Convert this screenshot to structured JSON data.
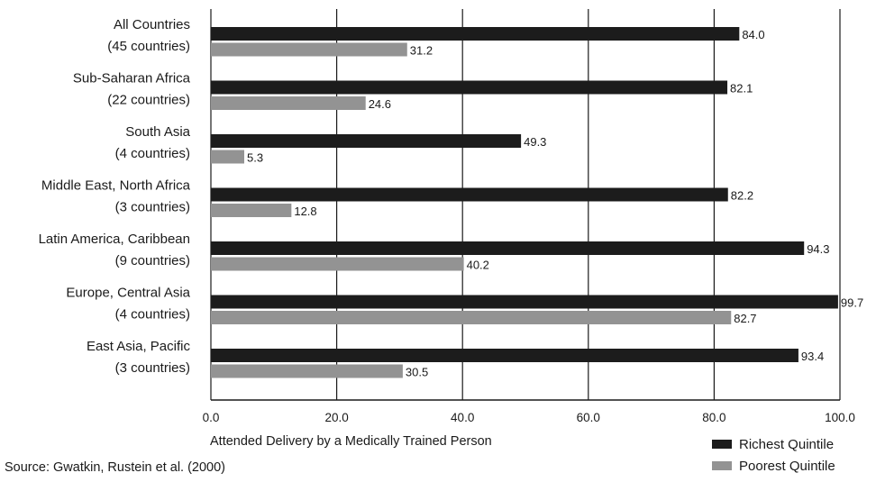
{
  "chart_data": {
    "type": "bar",
    "orientation": "horizontal",
    "categories": [
      [
        "All Countries",
        "(45 countries)"
      ],
      [
        "Sub-Saharan Africa",
        "(22 countries)"
      ],
      [
        "South Asia",
        "(4 countries)"
      ],
      [
        "Middle East, North Africa",
        "(3 countries)"
      ],
      [
        "Latin America, Caribbean",
        "(9 countries)"
      ],
      [
        "Europe, Central Asia",
        "(4 countries)"
      ],
      [
        "East Asia, Pacific",
        "(3 countries)"
      ]
    ],
    "series": [
      {
        "name": "Richest Quintile",
        "color": "#1c1c1c",
        "values": [
          84.0,
          82.1,
          49.3,
          82.2,
          94.3,
          99.7,
          93.4
        ]
      },
      {
        "name": "Poorest Quintile",
        "color": "#939393",
        "values": [
          31.2,
          24.6,
          5.3,
          12.8,
          40.2,
          82.7,
          30.5
        ]
      }
    ],
    "x_ticks": [
      "0.0",
      "20.0",
      "40.0",
      "60.0",
      "80.0",
      "100.0"
    ],
    "xlim": [
      0,
      100
    ],
    "xlabel": "Attended Delivery by a Medically Trained Person",
    "grid": "vertical",
    "legend_position": "bottom-right",
    "source": "Source: Gwatkin, Rustein et al. (2000)"
  }
}
